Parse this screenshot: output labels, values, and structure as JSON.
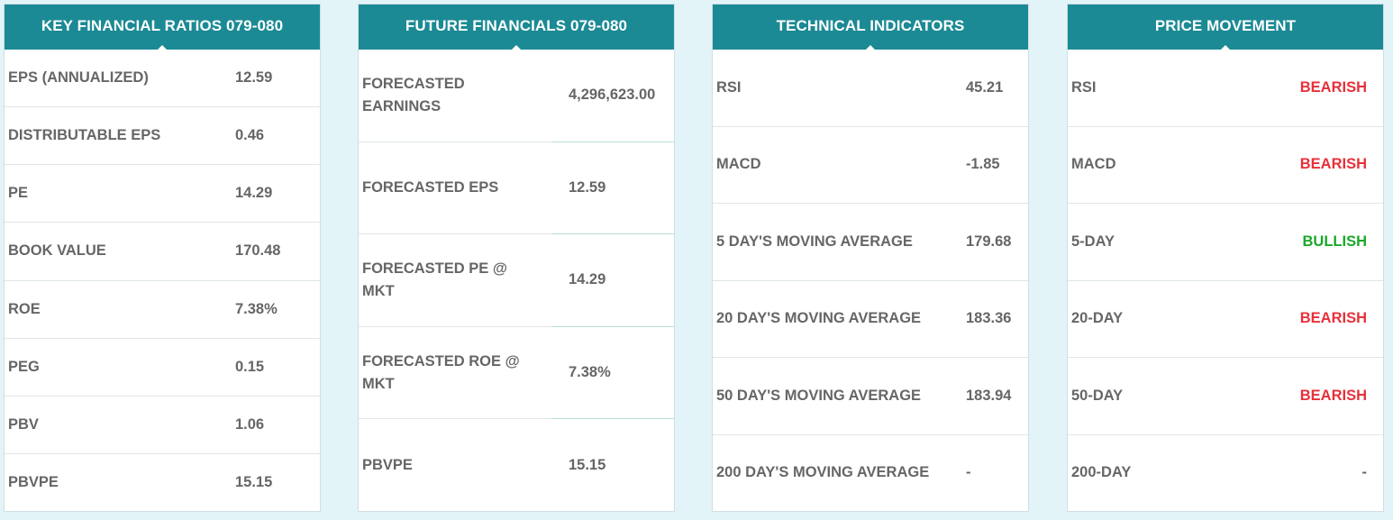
{
  "panels": {
    "key_ratios": {
      "title": "KEY FINANCIAL RATIOS 079-080",
      "rows": [
        {
          "label": "EPS (ANNUALIZED)",
          "value": "12.59"
        },
        {
          "label": "DISTRIBUTABLE EPS",
          "value": "0.46"
        },
        {
          "label": "PE",
          "value": "14.29"
        },
        {
          "label": "BOOK VALUE",
          "value": "170.48"
        },
        {
          "label": "ROE",
          "value": "7.38%"
        },
        {
          "label": "PEG",
          "value": "0.15"
        },
        {
          "label": "PBV",
          "value": "1.06"
        },
        {
          "label": "PBVPE",
          "value": "15.15"
        }
      ]
    },
    "future_financials": {
      "title": "FUTURE FINANCIALS 079-080",
      "rows": [
        {
          "label_1": "FORECASTED",
          "label_2": "EARNINGS",
          "value": "4,296,623.00"
        },
        {
          "label_1": "FORECASTED EPS",
          "label_2": "",
          "value": "12.59"
        },
        {
          "label_1": "FORECASTED PE @",
          "label_2": "MKT",
          "value": "14.29"
        },
        {
          "label_1": "FORECASTED ROE @",
          "label_2": "MKT",
          "value": "7.38%"
        },
        {
          "label_1": "PBVPE",
          "label_2": "",
          "value": "15.15"
        }
      ]
    },
    "technical_indicators": {
      "title": "TECHNICAL INDICATORS",
      "rows": [
        {
          "label": "RSI",
          "value": "45.21"
        },
        {
          "label": "MACD",
          "value": "-1.85"
        },
        {
          "label": "5 DAY'S MOVING AVERAGE",
          "value": "179.68"
        },
        {
          "label": "20 DAY'S MOVING AVERAGE",
          "value": "183.36"
        },
        {
          "label": "50 DAY'S MOVING AVERAGE",
          "value": "183.94"
        },
        {
          "label": "200 DAY'S MOVING AVERAGE",
          "value": "-"
        }
      ]
    },
    "price_movement": {
      "title": "PRICE MOVEMENT",
      "rows": [
        {
          "label": "RSI",
          "value": "BEARISH",
          "status": "bearish"
        },
        {
          "label": "MACD",
          "value": "BEARISH",
          "status": "bearish"
        },
        {
          "label": "5-DAY",
          "value": "BULLISH",
          "status": "bullish"
        },
        {
          "label": "20-DAY",
          "value": "BEARISH",
          "status": "bearish"
        },
        {
          "label": "50-DAY",
          "value": "BEARISH",
          "status": "bearish"
        },
        {
          "label": "200-DAY",
          "value": "-",
          "status": "neutral"
        }
      ]
    }
  },
  "colors": {
    "header_bg": "#1b8a94",
    "page_bg": "#e3f4f8",
    "bearish": "#e8303a",
    "bullish": "#1aa82a",
    "text": "#666666"
  }
}
